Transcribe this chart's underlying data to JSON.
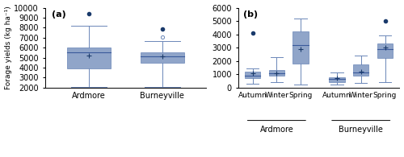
{
  "panel_a": {
    "title": "(a)",
    "ylabel": "Forage yields (kg ha⁻¹)",
    "ylim": [
      2000,
      10000
    ],
    "yticks": [
      2000,
      3000,
      4000,
      5000,
      6000,
      7000,
      8000,
      9000,
      10000
    ],
    "categories": [
      "Ardmore",
      "Burneyville"
    ],
    "boxes": [
      {
        "whislo": 2050,
        "q1": 3950,
        "med": 5500,
        "mean": 5200,
        "q3": 6050,
        "whishi": 8200,
        "fliers_filled": [
          9400
        ],
        "fliers_open": []
      },
      {
        "whislo": 2050,
        "q1": 4450,
        "med": 5150,
        "mean": 5100,
        "q3": 5550,
        "whishi": 6700,
        "fliers_filled": [
          7900
        ],
        "fliers_open": [
          7100
        ]
      }
    ],
    "box_color": "#6b87b8",
    "box_edge_color": "#6b87b8",
    "median_color": "#6b87b8",
    "whisker_color": "#6b87b8",
    "flier_filled_color": "#1a3a6b",
    "flier_open_color": "none",
    "flier_open_edge_color": "#6b87b8"
  },
  "panel_b": {
    "title": "(b)",
    "ylim": [
      0,
      6000
    ],
    "yticks": [
      0,
      1000,
      2000,
      3000,
      4000,
      5000,
      6000
    ],
    "group_labels": [
      "Autumn",
      "Winter",
      "Spring",
      "Autumn",
      "Winter",
      "Spring"
    ],
    "group_labels_bottom": [
      "Ardmore",
      "Burneyville"
    ],
    "boxes": [
      {
        "whislo": 300,
        "q1": 700,
        "med": 900,
        "mean": 1050,
        "q3": 1200,
        "whishi": 1450,
        "fliers_filled": [
          4100
        ],
        "fliers_open": []
      },
      {
        "whislo": 400,
        "q1": 900,
        "med": 1100,
        "mean": 1050,
        "q3": 1350,
        "whishi": 2300,
        "fliers_filled": [],
        "fliers_open": []
      },
      {
        "whislo": 250,
        "q1": 1800,
        "med": 3200,
        "mean": 2900,
        "q3": 4200,
        "whishi": 5200,
        "fliers_filled": [],
        "fliers_open": []
      },
      {
        "whislo": 250,
        "q1": 400,
        "med": 650,
        "mean": 700,
        "q3": 800,
        "whishi": 1150,
        "fliers_filled": [],
        "fliers_open": []
      },
      {
        "whislo": 350,
        "q1": 900,
        "med": 1150,
        "mean": 1200,
        "q3": 1750,
        "whishi": 2400,
        "fliers_filled": [],
        "fliers_open": []
      },
      {
        "whislo": 400,
        "q1": 2250,
        "med": 2900,
        "mean": 3000,
        "q3": 3300,
        "whishi": 3900,
        "fliers_filled": [
          5000
        ],
        "fliers_open": []
      }
    ],
    "box_color": "#6b87b8",
    "box_edge_color": "#6b87b8",
    "flier_filled_color": "#1a3a6b"
  },
  "background_color": "#ffffff",
  "font_size": 7
}
